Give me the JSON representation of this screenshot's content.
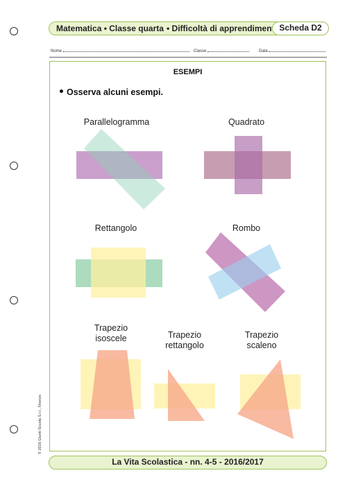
{
  "header": {
    "subject": "Matematica • Classe quarta",
    "topic": "• Difficoltà di apprendimento",
    "sheet_id": "Scheda D2"
  },
  "fields": {
    "name_label": "Nome",
    "class_label": "Classe",
    "date_label": "Data"
  },
  "content": {
    "title": "ESEMPI",
    "instruction": "Osserva alcuni esempi.",
    "shapes": [
      {
        "key": "parallelogram",
        "label": "Parallelogramma"
      },
      {
        "key": "square",
        "label": "Quadrato"
      },
      {
        "key": "rectangle",
        "label": "Rettangolo"
      },
      {
        "key": "rhombus",
        "label": "Rombo"
      },
      {
        "key": "isosceles-trapezoid",
        "label": "Trapezio\nisoscele"
      },
      {
        "key": "right-trapezoid",
        "label": "Trapezio\nrettangolo"
      },
      {
        "key": "scalene-trapezoid",
        "label": "Trapezio\nscaleno"
      }
    ]
  },
  "colors": {
    "accent_green": "#9ec35a",
    "bar_fill": "#e9f3cf",
    "purple": "#b57ab8",
    "mint": "#8fd1b4",
    "teal_green": "#7fc79a",
    "yellow": "#fff0a0",
    "sky_blue": "#99cfee",
    "magenta": "#b96aa9",
    "salmon": "#f6a98a",
    "mauve": "#b9859d",
    "plum": "#a96aa8"
  },
  "footer": {
    "copyright": "© 2016 Giunti Scuola S.r.l., Firenze",
    "publication": "La Vita Scolastica - nn. 4-5 - 2016/2017"
  }
}
